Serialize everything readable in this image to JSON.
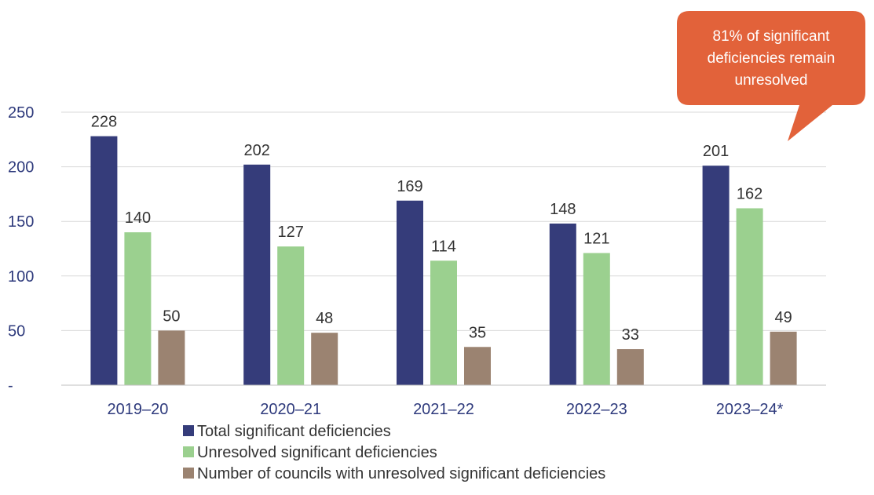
{
  "chart_data": {
    "type": "bar",
    "categories": [
      "2019–20",
      "2020–21",
      "2021–22",
      "2022–23",
      "2023–24*"
    ],
    "series": [
      {
        "name": "Total significant deficiencies",
        "values": [
          228,
          202,
          169,
          148,
          201
        ],
        "color": "#353c7a"
      },
      {
        "name": "Unresolved significant deficiencies",
        "values": [
          140,
          127,
          114,
          121,
          162
        ],
        "color": "#9bd08f"
      },
      {
        "name": "Number of councils with unresolved significant deficiencies",
        "values": [
          50,
          48,
          35,
          33,
          49
        ],
        "color": "#9b8371"
      }
    ],
    "ylim": [
      0,
      250
    ],
    "yticks": [
      {
        "value": 0,
        "label": "-"
      },
      {
        "value": 50,
        "label": "50"
      },
      {
        "value": 100,
        "label": "100"
      },
      {
        "value": 150,
        "label": "150"
      },
      {
        "value": 200,
        "label": "200"
      },
      {
        "value": 250,
        "label": "250"
      }
    ],
    "grid": true,
    "legend_position": "bottom",
    "annotation": {
      "lines": [
        "81% of significant",
        "deficiencies remain",
        "unresolved"
      ],
      "color": "#e2623a",
      "target_category": "2023–24*"
    }
  }
}
